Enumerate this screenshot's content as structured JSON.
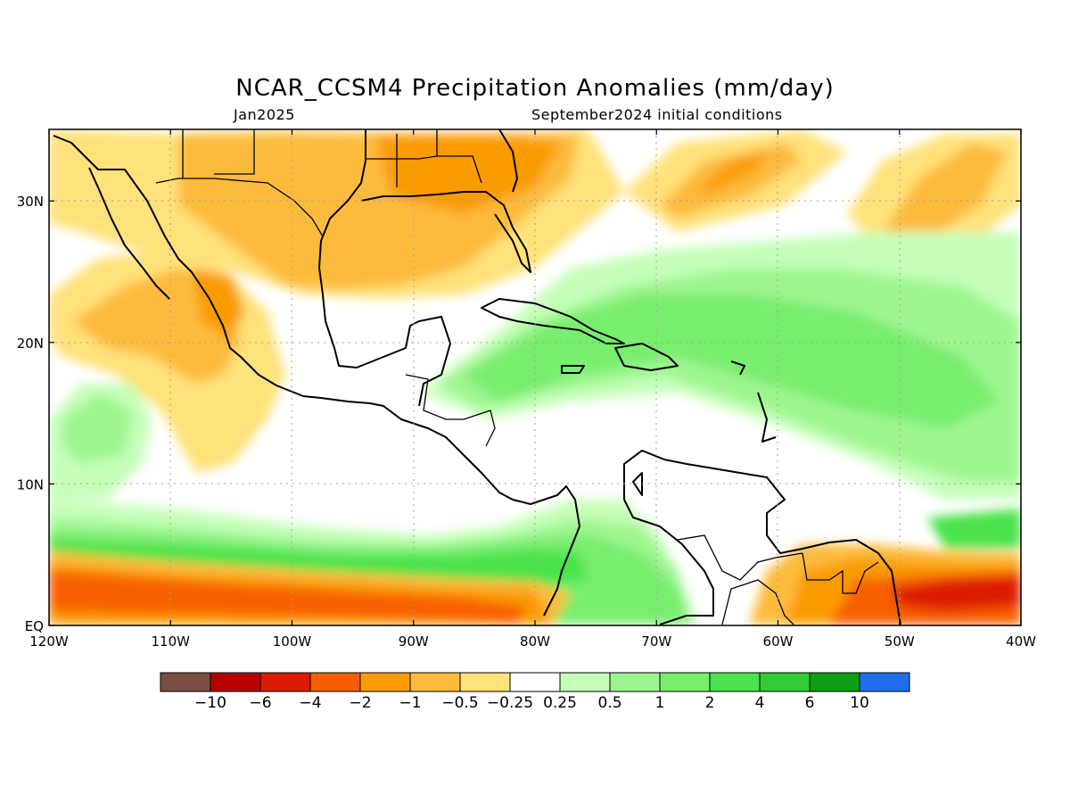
{
  "title": "NCAR_CCSM4 Precipitation Anomalies (mm/day)",
  "subtitle_left": "Jan2025",
  "subtitle_right": "September2024 initial conditions",
  "x_axis_ticks": [
    "120W",
    "110W",
    "100W",
    "90W",
    "80W",
    "70W",
    "60W",
    "50W",
    "40W"
  ],
  "y_axis_ticks": [
    "EQ",
    "10N",
    "20N",
    "30N"
  ],
  "colorbar": {
    "colors": [
      "#7a4e44",
      "#b70000",
      "#dc1b00",
      "#f85e00",
      "#fa9b00",
      "#fdbb3c",
      "#ffe27a",
      "#ffffff",
      "#c6ffba",
      "#9ef590",
      "#78ee6e",
      "#4be24b",
      "#2fcd33",
      "#0e9e12",
      "#1f6fed"
    ],
    "labels": [
      "-10",
      "-6",
      "-4",
      "-2",
      "-1",
      "-0.5",
      "-0.25",
      "0.25",
      "0.5",
      "1",
      "2",
      "4",
      "6",
      "10"
    ]
  }
}
